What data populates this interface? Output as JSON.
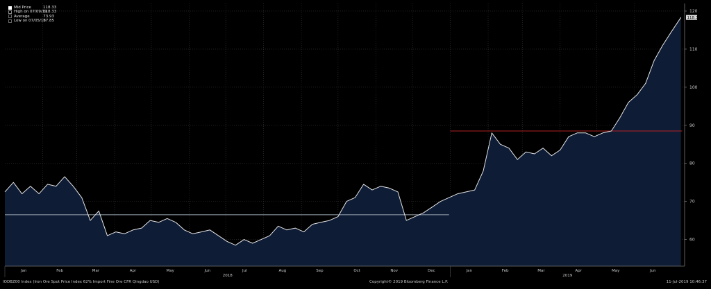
{
  "legend": {
    "items": [
      {
        "label": "Mid Price",
        "value": "118.33",
        "swatch": "#ffffff"
      },
      {
        "label": "High on 07/09/19",
        "value": "118.33",
        "swatch": "#888888"
      },
      {
        "label": "Average",
        "value": "73.93",
        "swatch": "#666666"
      },
      {
        "label": "Low on 07/05/18",
        "value": "57.85",
        "swatch": "#666666"
      }
    ]
  },
  "footer": {
    "description": "IODBZ00 Index (Iron Ore Spot Price Index 62% Import Fine Ore CFR Qingdao USD)",
    "copyright": "Copyright© 2019 Bloomberg Finance L.P.",
    "timestamp": "11-Jul-2019 10:46:37"
  },
  "colors": {
    "background": "#000000",
    "line": "#e6e6e6",
    "fill": "#0e1c36",
    "grid": "#3a3a3a",
    "avg_line": "#9aa6b2",
    "red_line": "#b22222",
    "last_label_bg": "#dddddd"
  },
  "chart_data": {
    "type": "area",
    "title": "",
    "xlabel": "",
    "ylabel": "",
    "ylim": [
      53,
      122
    ],
    "yticks": [
      60,
      70,
      80,
      90,
      100,
      110,
      120
    ],
    "x_month_labels": [
      "Jan",
      "Feb",
      "Mar",
      "Apr",
      "May",
      "Jun",
      "Jul",
      "Aug",
      "Sep",
      "Oct",
      "Nov",
      "Dec",
      "Jan",
      "Feb",
      "Mar",
      "Apr",
      "May",
      "Jun"
    ],
    "x_year_labels": [
      "2018",
      "2019"
    ],
    "last_value_label": "118.33",
    "reference_lines": [
      {
        "name": "Average",
        "value": 66.5,
        "from": "2018-01-01",
        "to": "2018-12-31"
      },
      {
        "name": "",
        "value": 88.5,
        "from": "2019-01-01",
        "to": "2019-07-10"
      }
    ],
    "series": [
      {
        "values": [
          [
            "2018-01-01",
            72.5
          ],
          [
            "2018-01-08",
            75
          ],
          [
            "2018-01-15",
            72
          ],
          [
            "2018-01-22",
            74
          ],
          [
            "2018-01-29",
            72
          ],
          [
            "2018-02-05",
            74.5
          ],
          [
            "2018-02-12",
            74
          ],
          [
            "2018-02-19",
            76.5
          ],
          [
            "2018-02-26",
            74
          ],
          [
            "2018-03-05",
            71
          ],
          [
            "2018-03-12",
            65
          ],
          [
            "2018-03-19",
            67.5
          ],
          [
            "2018-03-26",
            61
          ],
          [
            "2018-04-02",
            62
          ],
          [
            "2018-04-09",
            61.5
          ],
          [
            "2018-04-16",
            62.5
          ],
          [
            "2018-04-23",
            63
          ],
          [
            "2018-04-30",
            65
          ],
          [
            "2018-05-07",
            64.5
          ],
          [
            "2018-05-14",
            65.5
          ],
          [
            "2018-05-21",
            64.5
          ],
          [
            "2018-05-28",
            62.5
          ],
          [
            "2018-06-04",
            61.5
          ],
          [
            "2018-06-11",
            62
          ],
          [
            "2018-06-18",
            62.5
          ],
          [
            "2018-06-25",
            61
          ],
          [
            "2018-07-02",
            59.5
          ],
          [
            "2018-07-09",
            58.5
          ],
          [
            "2018-07-16",
            60
          ],
          [
            "2018-07-23",
            59
          ],
          [
            "2018-07-30",
            60
          ],
          [
            "2018-08-06",
            61
          ],
          [
            "2018-08-13",
            63.5
          ],
          [
            "2018-08-20",
            62.5
          ],
          [
            "2018-08-27",
            63
          ],
          [
            "2018-09-03",
            62
          ],
          [
            "2018-09-10",
            64
          ],
          [
            "2018-09-17",
            64.5
          ],
          [
            "2018-09-24",
            65
          ],
          [
            "2018-10-01",
            66
          ],
          [
            "2018-10-08",
            70
          ],
          [
            "2018-10-15",
            71
          ],
          [
            "2018-10-22",
            74.5
          ],
          [
            "2018-10-29",
            73
          ],
          [
            "2018-11-05",
            74
          ],
          [
            "2018-11-12",
            73.5
          ],
          [
            "2018-11-19",
            72.5
          ],
          [
            "2018-11-26",
            65
          ],
          [
            "2018-12-03",
            66
          ],
          [
            "2018-12-10",
            67
          ],
          [
            "2018-12-17",
            68.5
          ],
          [
            "2018-12-24",
            70
          ],
          [
            "2018-12-31",
            71
          ],
          [
            "2019-01-07",
            72
          ],
          [
            "2019-01-14",
            72.5
          ],
          [
            "2019-01-21",
            73
          ],
          [
            "2019-01-28",
            78
          ],
          [
            "2019-02-04",
            88
          ],
          [
            "2019-02-11",
            85
          ],
          [
            "2019-02-18",
            84
          ],
          [
            "2019-02-25",
            81
          ],
          [
            "2019-03-04",
            83
          ],
          [
            "2019-03-11",
            82.5
          ],
          [
            "2019-03-18",
            84
          ],
          [
            "2019-03-25",
            82
          ],
          [
            "2019-04-01",
            83.5
          ],
          [
            "2019-04-08",
            87
          ],
          [
            "2019-04-15",
            88
          ],
          [
            "2019-04-22",
            88
          ],
          [
            "2019-04-29",
            87
          ],
          [
            "2019-05-06",
            88
          ],
          [
            "2019-05-13",
            88.5
          ],
          [
            "2019-05-20",
            92
          ],
          [
            "2019-05-27",
            96
          ],
          [
            "2019-06-03",
            98
          ],
          [
            "2019-06-10",
            101
          ],
          [
            "2019-06-17",
            107
          ],
          [
            "2019-06-24",
            111
          ],
          [
            "2019-07-01",
            114.5
          ],
          [
            "2019-07-09",
            118.33
          ]
        ]
      }
    ]
  }
}
